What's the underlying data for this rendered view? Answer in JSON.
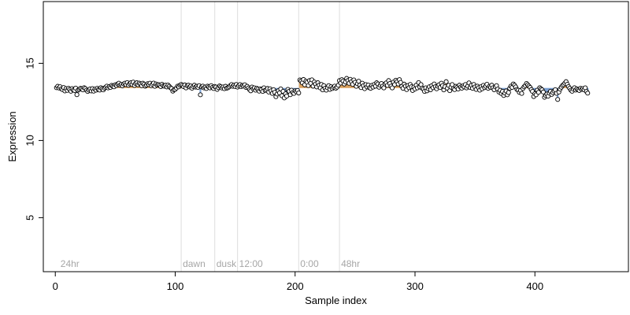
{
  "chart_data": {
    "type": "scatter",
    "xlabel": "Sample index",
    "ylabel": "Expression",
    "xlim": [
      -10,
      478
    ],
    "ylim": [
      1.5,
      19.0
    ],
    "xticks": [
      0,
      100,
      200,
      300,
      400
    ],
    "xtick_labels": [
      "0",
      "100",
      "200",
      "300",
      "400"
    ],
    "yticks": [
      5,
      10,
      15
    ],
    "ytick_labels": [
      "5",
      "10",
      "15"
    ],
    "baseline": 13.4,
    "grid": false,
    "legend": "none",
    "colors": {
      "above_fill": "#d9a15f",
      "below_fill": "#7a9fd1",
      "point_edge": "#000000",
      "point_fill": "#ffffff",
      "guide_line": "#dddddd",
      "annotation": "#a6a6a6"
    },
    "annotations": [
      {
        "x": 3,
        "text": "24hr"
      },
      {
        "x": 105,
        "text": "dawn"
      },
      {
        "x": 133,
        "text": "dusk"
      },
      {
        "x": 152,
        "text": "12:00"
      },
      {
        "x": 203,
        "text": "0:00"
      },
      {
        "x": 237,
        "text": "48hr"
      }
    ],
    "annotation_y": 2.0,
    "vlines": [
      105,
      133,
      152,
      203,
      237
    ],
    "series": [
      {
        "x0": 1,
        "values": [
          13.42,
          13.51,
          13.4,
          13.48,
          13.35,
          13.3,
          13.43,
          13.21,
          13.36,
          13.25,
          13.38,
          13.31,
          13.19,
          13.36,
          13.27,
          13.24,
          13.39,
          12.97,
          13.26,
          13.31,
          13.38,
          13.34,
          13.28,
          13.42,
          13.37,
          13.26,
          13.18,
          13.27,
          13.34,
          13.21,
          13.36,
          13.2,
          13.33,
          13.26,
          13.38,
          13.3,
          13.27,
          13.42,
          13.35,
          13.28,
          13.39,
          13.45,
          13.52,
          13.41,
          13.49,
          13.44,
          13.57,
          13.52,
          13.48,
          13.61,
          13.56,
          13.66,
          13.71,
          13.58,
          13.63,
          13.54,
          13.66,
          13.71,
          13.62,
          13.75,
          13.58,
          13.67,
          13.74,
          13.63,
          13.78,
          13.57,
          13.69,
          13.74,
          13.61,
          13.72,
          13.66,
          13.55,
          13.71,
          13.64,
          13.52,
          13.59,
          13.68,
          13.62,
          13.71,
          13.55,
          13.64,
          13.72,
          13.51,
          13.66,
          13.58,
          13.62,
          13.57,
          13.49,
          13.64,
          13.55,
          13.52,
          13.58,
          13.47,
          13.59,
          13.51,
          13.42,
          13.37,
          13.2,
          13.28,
          13.31,
          13.4,
          13.52,
          13.48,
          13.58,
          13.63,
          13.57,
          13.49,
          13.6,
          13.41,
          13.55,
          13.58,
          13.47,
          13.53,
          13.39,
          13.5,
          13.58,
          13.46,
          13.51,
          13.44,
          13.55,
          12.96,
          13.47,
          13.52,
          13.41,
          13.46,
          13.37,
          13.52,
          13.47,
          13.41,
          13.55,
          13.44,
          13.37,
          13.5,
          13.46,
          13.31,
          13.43,
          13.53,
          13.48,
          13.4,
          13.47,
          13.36,
          13.51,
          13.39,
          13.42,
          13.48,
          13.56,
          13.62,
          13.51,
          13.58,
          13.5,
          13.63,
          13.46,
          13.55,
          13.62,
          13.49,
          13.57,
          13.53,
          13.61,
          13.44,
          13.51,
          13.4,
          13.3,
          13.22,
          13.46,
          13.35,
          13.41,
          13.26,
          13.38,
          13.33,
          13.2,
          13.34,
          13.3,
          13.18,
          13.41,
          13.25,
          13.28,
          13.37,
          13.14,
          13.35,
          13.22,
          13.05,
          13.29,
          13.12,
          12.84,
          13.01,
          13.22,
          13.08,
          13.34,
          12.9,
          13.18,
          12.76,
          13.02,
          12.88,
          13.31,
          13.19,
          12.97,
          13.26,
          13.11,
          13.05,
          13.22,
          13.16,
          13.24,
          13.08,
          13.92,
          13.85,
          13.74,
          13.95,
          13.61,
          13.84,
          13.77,
          13.56,
          13.88,
          13.71,
          13.93,
          13.52,
          13.79,
          13.66,
          13.47,
          13.74,
          13.58,
          13.41,
          13.63,
          13.28,
          13.55,
          13.38,
          13.26,
          13.42,
          13.55,
          13.31,
          13.48,
          13.37,
          13.45,
          13.52,
          13.39,
          13.46,
          13.58,
          13.88,
          13.72,
          13.94,
          13.85,
          13.66,
          13.79,
          14.02,
          13.88,
          13.71,
          13.96,
          13.81,
          13.64,
          13.92,
          13.77,
          13.51,
          13.68,
          13.84,
          13.59,
          13.43,
          13.71,
          13.55,
          13.36,
          13.62,
          13.47,
          13.59,
          13.42,
          13.38,
          13.57,
          13.46,
          13.63,
          13.52,
          13.74,
          13.66,
          13.45,
          13.58,
          13.69,
          13.52,
          13.41,
          13.66,
          13.73,
          13.57,
          13.88,
          13.69,
          13.52,
          13.41,
          13.78,
          13.62,
          13.9,
          13.81,
          13.66,
          13.94,
          13.76,
          13.51,
          13.38,
          13.65,
          13.52,
          13.3,
          13.56,
          13.42,
          13.63,
          13.48,
          13.24,
          13.46,
          13.34,
          13.58,
          13.41,
          13.75,
          13.47,
          13.62,
          13.39,
          13.33,
          13.18,
          13.41,
          13.22,
          13.36,
          13.48,
          13.29,
          13.55,
          13.42,
          13.66,
          13.48,
          13.35,
          13.52,
          13.61,
          13.44,
          13.71,
          13.55,
          13.28,
          13.48,
          13.81,
          13.39,
          13.57,
          13.23,
          13.45,
          13.62,
          13.37,
          13.3,
          13.51,
          13.44,
          13.34,
          13.58,
          13.46,
          13.39,
          13.53,
          13.47,
          13.62,
          13.41,
          13.52,
          13.73,
          13.44,
          13.58,
          13.38,
          13.63,
          13.47,
          13.31,
          13.52,
          13.42,
          13.26,
          13.48,
          13.35,
          13.57,
          13.43,
          13.51,
          13.64,
          13.38,
          13.5,
          13.45,
          13.58,
          13.41,
          13.29,
          13.47,
          13.55,
          13.33,
          13.14,
          13.25,
          13.05,
          13.18,
          12.92,
          13.07,
          13.21,
          12.96,
          13.11,
          13.38,
          13.52,
          13.44,
          13.66,
          13.58,
          13.47,
          13.31,
          13.26,
          13.12,
          13.24,
          13.05,
          13.37,
          13.48,
          13.56,
          13.69,
          13.61,
          13.52,
          13.44,
          13.3,
          13.18,
          12.85,
          13.03,
          12.96,
          13.26,
          13.12,
          13.42,
          13.35,
          13.28,
          13.14,
          12.8,
          12.92,
          13.01,
          12.87,
          13.07,
          13.18,
          12.99,
          13.11,
          13.21,
          13.29,
          13.06,
          12.66,
          13.14,
          13.33,
          13.45,
          13.56,
          13.62,
          13.71,
          13.81,
          13.64,
          13.49,
          13.38,
          13.26,
          13.19,
          13.33,
          13.42,
          13.27,
          13.35,
          13.29,
          13.24,
          13.38,
          13.31,
          13.36,
          13.29,
          13.41,
          13.18,
          13.07
        ]
      }
    ]
  }
}
